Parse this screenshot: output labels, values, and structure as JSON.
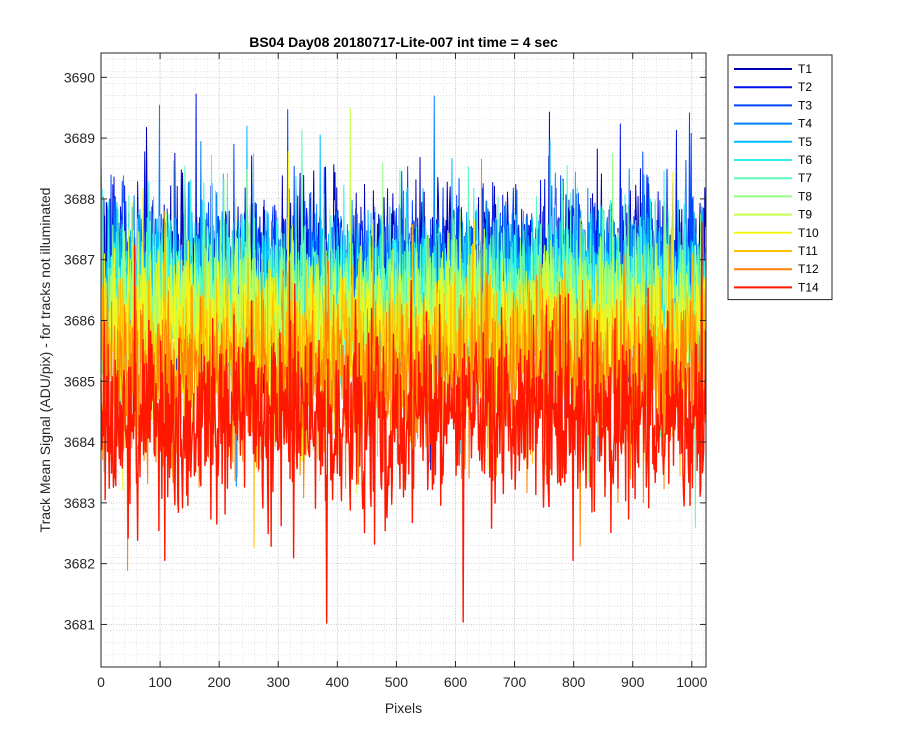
{
  "chart_data": {
    "type": "line",
    "title": "BS04 Day08 20180717-Lite-007 int time = 4 sec",
    "xlabel": "Pixels",
    "ylabel": "Track Mean Signal (ADU/pix) - for tracks not illuminated",
    "xlim": [
      0,
      1024
    ],
    "ylim": [
      3680.3,
      3690.4
    ],
    "xticks": [
      0,
      100,
      200,
      300,
      400,
      500,
      600,
      700,
      800,
      900,
      1000
    ],
    "yticks": [
      3681,
      3682,
      3683,
      3684,
      3685,
      3686,
      3687,
      3688,
      3689,
      3690
    ],
    "grid": true,
    "minor_grid": true,
    "legend_position": "outside-top-right",
    "series": [
      {
        "name": "T1",
        "color": "#0000b3",
        "center": 3686.9,
        "spread": 0.85
      },
      {
        "name": "T2",
        "color": "#0010e6",
        "center": 3686.8,
        "spread": 0.85
      },
      {
        "name": "T3",
        "color": "#0047ff",
        "center": 3686.7,
        "spread": 0.85
      },
      {
        "name": "T4",
        "color": "#0083ff",
        "center": 3686.6,
        "spread": 0.85
      },
      {
        "name": "T5",
        "color": "#00bbff",
        "center": 3686.5,
        "spread": 0.85
      },
      {
        "name": "T6",
        "color": "#2ff1ee",
        "center": 3686.4,
        "spread": 0.85
      },
      {
        "name": "T7",
        "color": "#5dfab8",
        "center": 3686.3,
        "spread": 0.85
      },
      {
        "name": "T8",
        "color": "#93ff84",
        "center": 3686.1,
        "spread": 0.85
      },
      {
        "name": "T9",
        "color": "#c5ff4e",
        "center": 3685.9,
        "spread": 0.85
      },
      {
        "name": "T10",
        "color": "#f5f519",
        "center": 3685.7,
        "spread": 0.85
      },
      {
        "name": "T11",
        "color": "#ffbf00",
        "center": 3685.4,
        "spread": 0.9
      },
      {
        "name": "T12",
        "color": "#ff8200",
        "center": 3685.0,
        "spread": 0.95
      },
      {
        "name": "T14",
        "color": "#ff1700",
        "center": 3684.4,
        "spread": 1.0
      }
    ],
    "notes": "Dense noise traces of 1024 pixel samples each; values generated procedurally around per-series mean levels."
  }
}
